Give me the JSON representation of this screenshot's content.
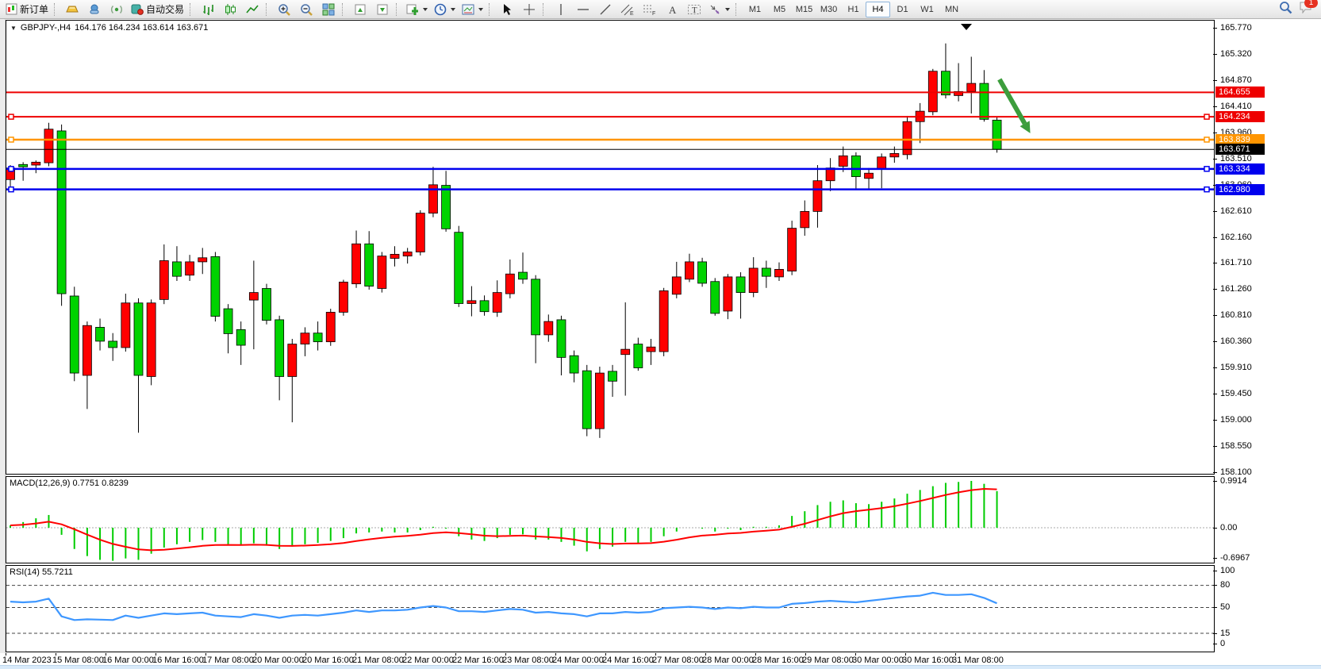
{
  "toolbar": {
    "new_order_label": "新订单",
    "autotrade_label": "自动交易",
    "timeframes": [
      "M1",
      "M5",
      "M15",
      "M30",
      "H1",
      "H4",
      "D1",
      "W1",
      "MN"
    ],
    "active_timeframe": "H4",
    "notification_count": "1"
  },
  "chart": {
    "symbol_period": "GBPJPY-,H4",
    "ohlc": "164.176 164.234 163.614 163.671"
  },
  "indicators": {
    "macd": {
      "label": "MACD(12,26,9) 0.7751 0.8239",
      "axis": [
        "0.9914",
        "0.00",
        "-0.6967"
      ]
    },
    "rsi": {
      "label": "RSI(14) 55.7211",
      "axis": [
        "100",
        "80",
        "50",
        "15",
        "0"
      ],
      "levels": [
        80,
        50,
        15
      ]
    }
  },
  "price_scale": {
    "ticks": [
      "165.770",
      "165.320",
      "164.870",
      "164.410",
      "163.960",
      "163.510",
      "163.060",
      "162.610",
      "162.160",
      "161.710",
      "161.260",
      "160.810",
      "160.360",
      "159.910",
      "159.450",
      "159.000",
      "158.550",
      "158.100"
    ],
    "badges": [
      {
        "value": "164.655",
        "price": 164.655,
        "bg": "#ee0000",
        "fg": "#ffffff"
      },
      {
        "value": "164.234",
        "price": 164.234,
        "bg": "#ee0000",
        "fg": "#ffffff"
      },
      {
        "value": "163.839",
        "price": 163.839,
        "bg": "#ff9500",
        "fg": "#ffffff"
      },
      {
        "value": "163.671",
        "price": 163.671,
        "bg": "#000000",
        "fg": "#ffffff"
      },
      {
        "value": "163.334",
        "price": 163.334,
        "bg": "#0000ee",
        "fg": "#ffffff"
      },
      {
        "value": "162.980",
        "price": 162.98,
        "bg": "#0000ee",
        "fg": "#ffffff"
      }
    ]
  },
  "time_scale": {
    "labels": [
      "14 Mar 2023",
      "15 Mar 08:00",
      "16 Mar 00:00",
      "16 Mar 16:00",
      "17 Mar 08:00",
      "20 Mar 00:00",
      "20 Mar 16:00",
      "21 Mar 08:00",
      "22 Mar 00:00",
      "22 Mar 16:00",
      "23 Mar 08:00",
      "24 Mar 00:00",
      "24 Mar 16:00",
      "27 Mar 08:00",
      "28 Mar 00:00",
      "28 Mar 16:00",
      "29 Mar 08:00",
      "30 Mar 00:00",
      "30 Mar 16:00",
      "31 Mar 08:00"
    ]
  },
  "chart_data": {
    "type": "candlestick",
    "title": "GBPJPY- H4",
    "ylim": [
      158.1,
      165.77
    ],
    "up_color": "#ff0000",
    "down_color": "#00d300",
    "note": "Chinese color convention: red = up candle, green = down candle",
    "candles": [
      [
        163.15,
        163.4,
        163.0,
        163.35
      ],
      [
        163.41,
        163.45,
        163.13,
        163.37
      ],
      [
        163.4,
        163.48,
        163.26,
        163.45
      ],
      [
        163.44,
        164.13,
        163.38,
        164.02
      ],
      [
        163.99,
        164.1,
        160.97,
        161.18
      ],
      [
        161.14,
        161.3,
        159.67,
        159.81
      ],
      [
        159.77,
        160.7,
        159.19,
        160.63
      ],
      [
        160.6,
        160.75,
        160.2,
        160.36
      ],
      [
        160.36,
        160.5,
        160.02,
        160.25
      ],
      [
        160.25,
        161.18,
        160.18,
        161.02
      ],
      [
        161.02,
        161.1,
        158.78,
        159.77
      ],
      [
        159.75,
        161.08,
        159.6,
        161.02
      ],
      [
        161.08,
        162.03,
        161.0,
        161.75
      ],
      [
        161.73,
        162.0,
        161.4,
        161.48
      ],
      [
        161.5,
        161.85,
        161.4,
        161.73
      ],
      [
        161.73,
        161.97,
        161.52,
        161.8
      ],
      [
        161.82,
        161.9,
        160.7,
        160.79
      ],
      [
        160.92,
        161.0,
        160.15,
        160.49
      ],
      [
        160.56,
        160.7,
        159.95,
        160.29
      ],
      [
        161.07,
        161.75,
        160.22,
        161.2
      ],
      [
        161.27,
        161.35,
        160.65,
        160.72
      ],
      [
        160.73,
        160.8,
        159.34,
        159.75
      ],
      [
        159.75,
        160.4,
        158.96,
        160.31
      ],
      [
        160.31,
        160.6,
        160.1,
        160.5
      ],
      [
        160.5,
        160.7,
        160.2,
        160.35
      ],
      [
        160.35,
        160.92,
        160.28,
        160.86
      ],
      [
        160.86,
        161.42,
        160.8,
        161.38
      ],
      [
        161.35,
        162.27,
        161.28,
        162.04
      ],
      [
        162.04,
        162.26,
        161.25,
        161.31
      ],
      [
        161.27,
        161.9,
        161.2,
        161.83
      ],
      [
        161.79,
        162.0,
        161.65,
        161.86
      ],
      [
        161.83,
        161.97,
        161.7,
        161.9
      ],
      [
        161.9,
        162.62,
        161.84,
        162.57
      ],
      [
        162.57,
        163.37,
        162.5,
        163.06
      ],
      [
        163.05,
        163.3,
        162.25,
        162.3
      ],
      [
        162.24,
        162.35,
        160.95,
        161.01
      ],
      [
        161.01,
        161.31,
        160.79,
        161.06
      ],
      [
        161.06,
        161.15,
        160.8,
        160.87
      ],
      [
        160.86,
        161.41,
        160.78,
        161.2
      ],
      [
        161.18,
        161.77,
        161.1,
        161.52
      ],
      [
        161.55,
        161.89,
        161.35,
        161.43
      ],
      [
        161.43,
        161.5,
        159.98,
        160.47
      ],
      [
        160.47,
        160.82,
        160.35,
        160.7
      ],
      [
        160.73,
        160.8,
        159.77,
        160.08
      ],
      [
        160.11,
        160.2,
        159.65,
        159.81
      ],
      [
        159.85,
        159.95,
        158.72,
        158.85
      ],
      [
        158.85,
        159.92,
        158.69,
        159.81
      ],
      [
        159.84,
        159.95,
        159.4,
        159.67
      ],
      [
        160.13,
        161.03,
        159.42,
        160.22
      ],
      [
        160.31,
        160.42,
        159.85,
        159.9
      ],
      [
        160.18,
        160.4,
        159.95,
        160.26
      ],
      [
        160.18,
        161.28,
        160.1,
        161.23
      ],
      [
        161.17,
        161.73,
        161.1,
        161.47
      ],
      [
        161.43,
        161.87,
        161.38,
        161.73
      ],
      [
        161.73,
        161.8,
        161.3,
        161.36
      ],
      [
        161.39,
        161.45,
        160.8,
        160.84
      ],
      [
        160.88,
        161.52,
        160.74,
        161.47
      ],
      [
        161.47,
        161.55,
        160.75,
        161.2
      ],
      [
        161.2,
        161.81,
        161.12,
        161.62
      ],
      [
        161.62,
        161.75,
        161.28,
        161.48
      ],
      [
        161.47,
        161.72,
        161.4,
        161.6
      ],
      [
        161.57,
        162.44,
        161.5,
        162.31
      ],
      [
        162.32,
        162.79,
        162.18,
        162.6
      ],
      [
        162.6,
        163.4,
        162.32,
        163.13
      ],
      [
        163.13,
        163.52,
        162.95,
        163.35
      ],
      [
        163.38,
        163.72,
        163.28,
        163.56
      ],
      [
        163.56,
        163.62,
        162.97,
        163.2
      ],
      [
        163.17,
        163.35,
        162.99,
        163.26
      ],
      [
        163.33,
        163.6,
        163.0,
        163.54
      ],
      [
        163.54,
        163.72,
        163.44,
        163.6
      ],
      [
        163.58,
        164.25,
        163.5,
        164.15
      ],
      [
        164.15,
        164.47,
        163.78,
        164.33
      ],
      [
        164.32,
        165.06,
        164.26,
        165.02
      ],
      [
        165.02,
        165.5,
        164.55,
        164.61
      ],
      [
        164.6,
        165.16,
        164.5,
        164.67
      ],
      [
        164.67,
        165.27,
        164.29,
        164.81
      ],
      [
        164.81,
        165.04,
        164.15,
        164.19
      ],
      [
        164.176,
        164.234,
        163.614,
        163.671
      ]
    ],
    "hlines": [
      {
        "price": 164.655,
        "color": "#ee0000",
        "width": 2,
        "selected": false
      },
      {
        "price": 164.234,
        "color": "#ee0000",
        "width": 2,
        "selected": true
      },
      {
        "price": 163.839,
        "color": "#ff9500",
        "width": 2.5,
        "selected": true
      },
      {
        "price": 163.671,
        "color": "#000000",
        "width": 1,
        "selected": false
      },
      {
        "price": 163.334,
        "color": "#0000ee",
        "width": 2.5,
        "selected": true
      },
      {
        "price": 162.98,
        "color": "#0000ee",
        "width": 2.5,
        "selected": true
      }
    ],
    "annotations": [
      {
        "type": "arrow",
        "from_bar": 77.2,
        "from_price": 164.88,
        "to_bar": 79.6,
        "to_price": 163.95,
        "color": "#3c9d3c"
      }
    ],
    "macd": {
      "params": [
        12,
        26,
        9
      ],
      "value": 0.7751,
      "signal": 0.8239,
      "ylim": [
        -0.6967,
        0.9914
      ],
      "histogram": [
        0.05,
        0.12,
        0.2,
        0.27,
        -0.15,
        -0.45,
        -0.6,
        -0.68,
        -0.7,
        -0.65,
        -0.68,
        -0.55,
        -0.42,
        -0.35,
        -0.3,
        -0.26,
        -0.3,
        -0.35,
        -0.38,
        -0.33,
        -0.38,
        -0.45,
        -0.4,
        -0.35,
        -0.32,
        -0.28,
        -0.22,
        -0.12,
        -0.1,
        -0.08,
        -0.1,
        -0.1,
        -0.05,
        0.02,
        -0.02,
        -0.18,
        -0.25,
        -0.28,
        -0.22,
        -0.15,
        -0.14,
        -0.25,
        -0.25,
        -0.3,
        -0.38,
        -0.5,
        -0.45,
        -0.4,
        -0.3,
        -0.32,
        -0.3,
        -0.18,
        -0.08,
        0,
        -0.02,
        -0.08,
        -0.02,
        -0.05,
        0.02,
        0.02,
        0.05,
        0.25,
        0.35,
        0.48,
        0.55,
        0.58,
        0.52,
        0.5,
        0.55,
        0.62,
        0.72,
        0.8,
        0.88,
        0.95,
        0.97,
        0.9914,
        0.93,
        0.7751
      ],
      "hist_color": "#00cc00",
      "signal_color": "#ff0000"
    },
    "rsi": {
      "period": 14,
      "value": 55.7211,
      "levels": [
        80,
        50,
        15
      ],
      "line_color": "#3e97ff",
      "values": [
        58,
        57,
        58,
        62,
        38,
        33,
        34,
        33.5,
        33,
        39,
        36,
        39,
        42,
        41,
        42,
        43,
        39,
        38,
        37,
        41,
        39,
        36,
        39,
        40,
        39,
        41,
        43,
        46,
        44,
        46,
        46,
        47,
        50,
        52,
        50,
        45,
        45,
        44,
        46,
        48,
        47,
        43,
        44,
        42,
        41,
        38,
        42,
        42,
        44,
        43,
        44,
        49,
        50,
        51,
        50,
        48,
        50,
        49,
        51,
        50,
        50,
        55,
        56,
        58,
        59,
        58,
        57,
        59,
        61,
        63,
        65,
        66,
        70,
        67,
        67,
        68,
        63,
        55.72
      ]
    }
  }
}
